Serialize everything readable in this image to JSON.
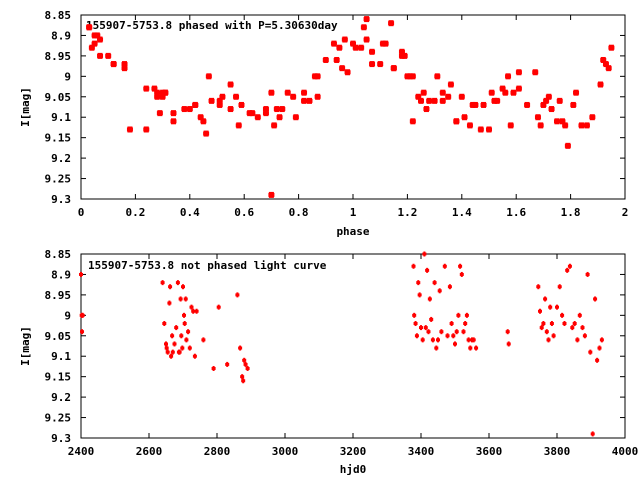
{
  "chart_data": [
    {
      "type": "scatter",
      "title": "155907-5753.8 phased with P=5.30630day",
      "xlabel": "phase",
      "ylabel": "I[mag]",
      "xlim": [
        0,
        2
      ],
      "ylim": [
        9.3,
        8.85
      ],
      "y_inverted": true,
      "x_ticks": [
        "0",
        "0.2",
        "0.4",
        "0.6",
        "0.8",
        "1",
        "1.2",
        "1.4",
        "1.6",
        "1.8",
        "2"
      ],
      "y_ticks": [
        "8.85",
        "8.9",
        "8.95",
        "9",
        "9.05",
        "9.1",
        "9.15",
        "9.2",
        "9.25",
        "9.3"
      ],
      "grid": false,
      "marker_color": "#ff0000",
      "series": [
        {
          "x": [
            0.03,
            0.03,
            0.04,
            0.05,
            0.06,
            0.07,
            0.07,
            0.12,
            0.16,
            0.24,
            0.27,
            0.28,
            0.29,
            0.3,
            0.3,
            0.31,
            0.34,
            0.4,
            0.42,
            0.44,
            0.46,
            0.47,
            0.51,
            0.51,
            0.55,
            0.57,
            0.59,
            0.63,
            0.68,
            0.7,
            0.71,
            0.72,
            0.74,
            0.76,
            0.79,
            0.82,
            0.84,
            0.87,
            0.87,
            0.94,
            0.95,
            0.96,
            0.98,
            1.0,
            1.01,
            1.04,
            1.05,
            1.05,
            1.07,
            1.1,
            1.12,
            1.14,
            1.15,
            1.18,
            1.19,
            1.2,
            1.22,
            1.22,
            1.25,
            1.26,
            1.27,
            1.3,
            1.31,
            1.33,
            1.35,
            1.36,
            1.38,
            1.4,
            1.41,
            1.43,
            1.45,
            1.48,
            1.5,
            1.51,
            1.53,
            1.55,
            1.57,
            1.58,
            1.59,
            1.61,
            1.67,
            1.68,
            1.7,
            1.71,
            1.73,
            1.75,
            1.76,
            1.78,
            1.79,
            1.81,
            1.82,
            1.86,
            1.91,
            1.92,
            1.93,
            1.94,
            1.95,
            0.05,
            0.1,
            0.12,
            0.16,
            0.18,
            0.24,
            0.28,
            0.31,
            0.34,
            0.38,
            0.42,
            0.45,
            0.48,
            0.52,
            0.55,
            0.58,
            0.62,
            0.65,
            0.68,
            0.7,
            0.73,
            0.78,
            0.82,
            0.86,
            0.9,
            0.93,
            0.97,
            1.03,
            1.07,
            1.11,
            1.15,
            1.18,
            1.21,
            1.24,
            1.28,
            1.33,
            1.38,
            1.44,
            1.47,
            1.52,
            1.56,
            1.61,
            1.64,
            1.69,
            1.72,
            1.77,
            1.84,
            1.88
          ],
          "y": [
            8.88,
            8.88,
            8.93,
            8.92,
            8.9,
            8.91,
            8.95,
            8.97,
            8.97,
            9.13,
            9.03,
            9.04,
            9.09,
            9.05,
            9.04,
            9.04,
            9.11,
            9.08,
            9.07,
            9.1,
            9.14,
            9.0,
            9.06,
            9.07,
            9.02,
            9.05,
            9.07,
            9.09,
            9.09,
            9.29,
            9.12,
            9.08,
            9.08,
            9.04,
            9.1,
            9.04,
            9.06,
            9.05,
            9.0,
            8.96,
            8.93,
            8.98,
            8.99,
            8.92,
            8.93,
            8.88,
            8.86,
            8.91,
            8.94,
            8.97,
            8.92,
            8.87,
            8.98,
            8.94,
            8.95,
            9.0,
            9.0,
            9.11,
            9.06,
            9.04,
            9.08,
            9.06,
            9.0,
            9.06,
            9.05,
            9.02,
            9.11,
            9.05,
            9.1,
            9.12,
            9.07,
            9.07,
            9.13,
            9.04,
            9.06,
            9.03,
            9.0,
            9.12,
            9.04,
            8.99,
            8.99,
            9.1,
            9.07,
            9.06,
            9.08,
            9.11,
            9.06,
            9.12,
            9.17,
            9.07,
            9.04,
            9.12,
            9.02,
            8.96,
            8.97,
            8.98,
            8.93,
            8.9,
            8.95,
            8.97,
            8.98,
            9.13,
            9.03,
            9.05,
            9.04,
            9.09,
            9.08,
            9.07,
            9.11,
            9.06,
            9.05,
            9.08,
            9.12,
            9.09,
            9.1,
            9.08,
            9.04,
            9.1,
            9.05,
            9.06,
            9.0,
            8.96,
            8.92,
            8.91,
            8.93,
            8.97,
            8.92,
            8.98,
            8.95,
            9.0,
            9.05,
            9.06,
            9.04,
            9.11,
            9.07,
            9.13,
            9.06,
            9.04,
            9.03,
            9.07,
            9.12,
            9.05,
            9.11,
            9.12,
            9.1
          ]
        }
      ]
    },
    {
      "type": "scatter",
      "title": "155907-5753.8 not phased light curve",
      "xlabel": "hjd0",
      "ylabel": "I[mag]",
      "xlim": [
        2400,
        4000
      ],
      "ylim": [
        9.3,
        8.85
      ],
      "y_inverted": true,
      "x_ticks": [
        "2400",
        "2600",
        "2800",
        "3000",
        "3200",
        "3400",
        "3600",
        "3800",
        "4000"
      ],
      "y_ticks": [
        "8.85",
        "8.9",
        "8.95",
        "9",
        "9.05",
        "9.1",
        "9.15",
        "9.2",
        "9.25",
        "9.3"
      ],
      "grid": false,
      "marker_color": "#ff0000",
      "series": [
        {
          "x": [
            2400,
            2402,
            2403,
            2405,
            2640,
            2645,
            2650,
            2652,
            2655,
            2660,
            2662,
            2665,
            2668,
            2670,
            2675,
            2680,
            2685,
            2688,
            2690,
            2693,
            2695,
            2698,
            2700,
            2703,
            2705,
            2708,
            2710,
            2715,
            2720,
            2725,
            2730,
            2735,
            2740,
            2760,
            2790,
            2805,
            2830,
            2860,
            2868,
            2874,
            2877,
            2880,
            2884,
            2890,
            3378,
            3380,
            3384,
            3388,
            3392,
            3396,
            3400,
            3405,
            3410,
            3414,
            3418,
            3422,
            3426,
            3430,
            3435,
            3440,
            3445,
            3450,
            3455,
            3460,
            3470,
            3478,
            3485,
            3490,
            3495,
            3500,
            3505,
            3510,
            3515,
            3520,
            3525,
            3530,
            3535,
            3540,
            3545,
            3550,
            3555,
            3562,
            3655,
            3658,
            3745,
            3750,
            3755,
            3760,
            3765,
            3770,
            3775,
            3780,
            3785,
            3790,
            3800,
            3808,
            3815,
            3822,
            3830,
            3838,
            3845,
            3852,
            3860,
            3867,
            3875,
            3882,
            3890,
            3898,
            3905,
            3912,
            3918,
            3925,
            3932
          ],
          "y": [
            8.9,
            9.0,
            9.04,
            9.0,
            8.92,
            9.02,
            9.07,
            9.08,
            9.09,
            8.97,
            8.93,
            9.1,
            9.05,
            9.09,
            9.07,
            9.03,
            8.92,
            9.09,
            9.09,
            8.96,
            9.05,
            9.08,
            8.93,
            9.0,
            9.02,
            8.96,
            9.06,
            9.04,
            9.08,
            8.98,
            8.99,
            9.1,
            8.99,
            9.06,
            9.13,
            8.98,
            9.12,
            8.95,
            9.08,
            9.15,
            9.16,
            9.11,
            9.12,
            9.13,
            8.88,
            9.0,
            9.02,
            9.05,
            8.92,
            8.95,
            9.03,
            9.06,
            8.85,
            9.03,
            8.89,
            9.04,
            8.96,
            9.01,
            9.06,
            8.92,
            9.08,
            9.06,
            8.94,
            9.04,
            8.88,
            9.05,
            8.93,
            9.02,
            9.05,
            9.07,
            9.04,
            9.0,
            8.88,
            8.9,
            9.04,
            9.02,
            9.0,
            9.06,
            9.08,
            9.06,
            9.06,
            9.08,
            9.04,
            9.07,
            8.93,
            8.99,
            9.03,
            9.02,
            8.96,
            9.04,
            9.06,
            8.98,
            9.02,
            9.05,
            8.98,
            8.93,
            9.0,
            9.02,
            8.89,
            8.88,
            9.03,
            9.02,
            9.06,
            9.0,
            9.03,
            9.05,
            8.9,
            9.09,
            9.29,
            8.96,
            9.11,
            9.08,
            9.06
          ]
        }
      ]
    }
  ]
}
